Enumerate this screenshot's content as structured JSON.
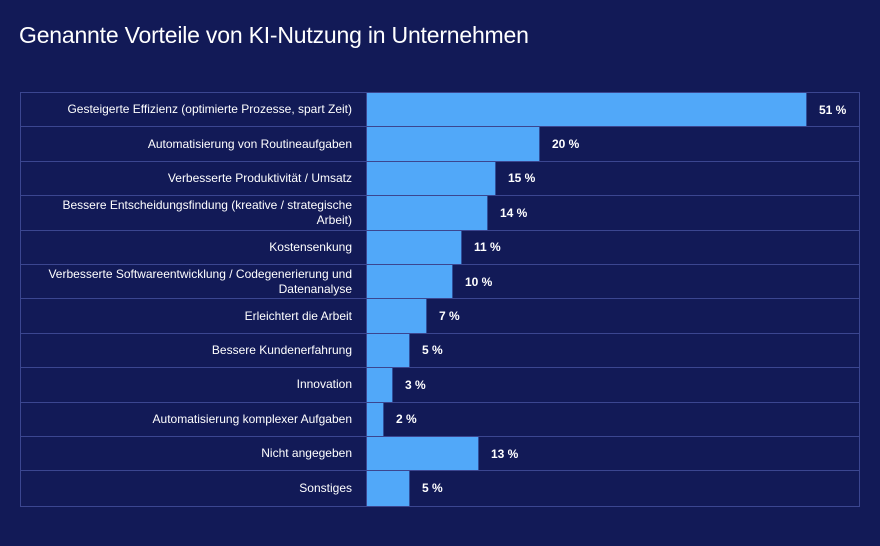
{
  "chart_data": {
    "type": "bar",
    "orientation": "horizontal",
    "title": "Genannte Vorteile von KI-Nutzung in Unternehmen",
    "xlabel": "",
    "ylabel": "",
    "unit": "%",
    "grid": false,
    "legend": null,
    "xlim": [
      0,
      51
    ],
    "categories": [
      "Gesteigerte Effizienz (optimierte Prozesse, spart Zeit)",
      "Automatisierung von Routineaufgaben",
      "Verbesserte Produktivität / Umsatz",
      "Bessere Entscheidungsfindung (kreative / strategische Arbeit)",
      "Kostensenkung",
      "Verbesserte Softwareentwicklung / Codegenerierung und Datenanalyse",
      "Erleichtert die Arbeit",
      "Bessere Kundenerfahrung",
      "Innovation",
      "Automatisierung komplexer Aufgaben",
      "Nicht angegeben",
      "Sonstiges"
    ],
    "values": [
      51,
      20,
      15,
      14,
      11,
      10,
      7,
      5,
      3,
      2,
      13,
      5
    ],
    "value_labels": [
      "51 %",
      "20 %",
      "15 %",
      "14 %",
      "11 %",
      "10 %",
      "7 %",
      "5 %",
      "3 %",
      "2 %",
      "13 %",
      "5 %"
    ],
    "colors": {
      "background": "#121a57",
      "bar": "#51a8f9",
      "grid_line": "#3b4690",
      "text": "#ffffff"
    }
  }
}
